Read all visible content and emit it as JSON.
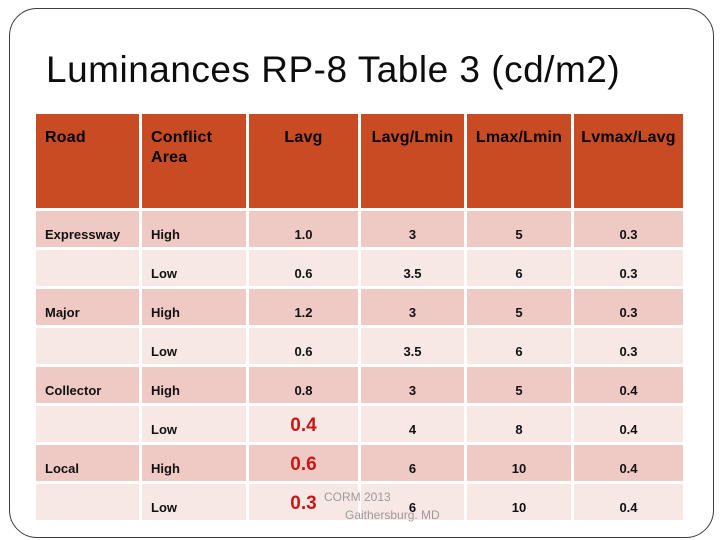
{
  "slide": {
    "title": "Luminances RP-8 Table 3 (cd/m2)",
    "footer_line1": "CORM 2013",
    "footer_line2": "Gaithersburg. MD"
  },
  "colors": {
    "header_bg": "#C84B23",
    "row_band_dark": "#EFCAC4",
    "row_band_light": "#F8E8E5",
    "highlight_red": "#CC1616",
    "gridline": "#FFFFFF",
    "footer_gray": "#9B9B9B",
    "title_text": "#0D0D0D"
  },
  "table": {
    "headers": [
      "Road",
      "Conflict Area",
      "Lavg",
      "Lavg/Lmin",
      "Lmax/Lmin",
      "Lvmax/Lavg"
    ],
    "rows": [
      {
        "cells": [
          "Expressway",
          "High",
          "1.0",
          "3",
          "5",
          "0.3"
        ],
        "lavg_red": false
      },
      {
        "cells": [
          "",
          "Low",
          "0.6",
          "3.5",
          "6",
          "0.3"
        ],
        "lavg_red": false
      },
      {
        "cells": [
          "Major",
          "High",
          "1.2",
          "3",
          "5",
          "0.3"
        ],
        "lavg_red": false
      },
      {
        "cells": [
          "",
          "Low",
          "0.6",
          "3.5",
          "6",
          "0.3"
        ],
        "lavg_red": false
      },
      {
        "cells": [
          "Collector",
          "High",
          "0.8",
          "3",
          "5",
          "0.4"
        ],
        "lavg_red": false
      },
      {
        "cells": [
          "",
          "Low",
          "0.4",
          "4",
          "8",
          "0.4"
        ],
        "lavg_red": true
      },
      {
        "cells": [
          "Local",
          "High",
          "0.6",
          "6",
          "10",
          "0.4"
        ],
        "lavg_red": true
      },
      {
        "cells": [
          "",
          "Low",
          "0.3",
          "6",
          "10",
          "0.4"
        ],
        "lavg_red": true
      }
    ]
  },
  "chart_data": {
    "type": "table",
    "title": "Luminances RP-8 Table 3 (cd/m2)",
    "columns": [
      "Road",
      "Conflict Area",
      "Lavg",
      "Lavg/Lmin",
      "Lmax/Lmin",
      "Lvmax/Lavg"
    ],
    "rows": [
      [
        "Expressway",
        "High",
        1.0,
        3,
        5,
        0.3
      ],
      [
        "Expressway",
        "Low",
        0.6,
        3.5,
        6,
        0.3
      ],
      [
        "Major",
        "High",
        1.2,
        3,
        5,
        0.3
      ],
      [
        "Major",
        "Low",
        0.6,
        3.5,
        6,
        0.3
      ],
      [
        "Collector",
        "High",
        0.8,
        3,
        5,
        0.4
      ],
      [
        "Collector",
        "Low",
        0.4,
        4,
        8,
        0.4
      ],
      [
        "Local",
        "High",
        0.6,
        6,
        10,
        0.4
      ],
      [
        "Local",
        "Low",
        0.3,
        6,
        10,
        0.4
      ]
    ],
    "highlighted_cells": [
      {
        "column": "Lavg",
        "road": "Collector",
        "conflict_area": "Low",
        "value": 0.4
      },
      {
        "column": "Lavg",
        "road": "Local",
        "conflict_area": "High",
        "value": 0.6
      },
      {
        "column": "Lavg",
        "road": "Local",
        "conflict_area": "Low",
        "value": 0.3
      }
    ]
  }
}
